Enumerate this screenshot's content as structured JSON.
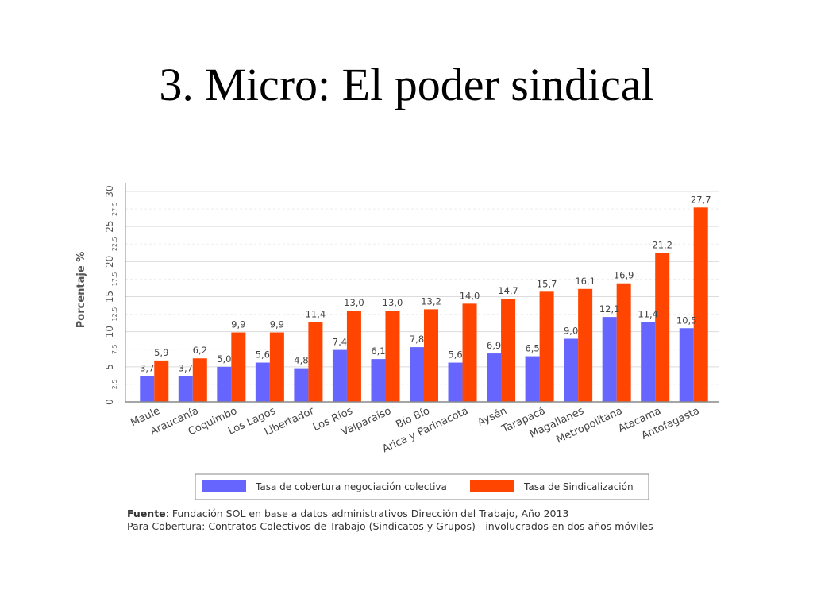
{
  "slide": {
    "title": "3. Micro: El poder sindical"
  },
  "source": {
    "label": "Fuente",
    "text": ": Fundación SOL en base a datos administrativos Dirección del Trabajo, Año 2013",
    "note": "Para Cobertura: Contratos Colectivos de Trabajo (Sindicatos y Grupos) - involucrados en dos años móviles"
  },
  "chart_data": {
    "type": "bar",
    "ylabel": "Porcentaje %",
    "ylim": [
      0,
      30
    ],
    "y_major_ticks": [
      "0",
      "5",
      "10",
      "15",
      "20",
      "25",
      "30"
    ],
    "y_minor_ticks": [
      "2.5",
      "7.5",
      "12.5",
      "17.5",
      "22.5",
      "27.5"
    ],
    "grid": true,
    "legend_position": "bottom",
    "categories": [
      "Maule",
      "Araucanía",
      "Coquimbo",
      "Los Lagos",
      "Libertador",
      "Los Ríos",
      "Valparaíso",
      "Bío Bío",
      "Arica y Parinacota",
      "Aysén",
      "Tarapacá",
      "Magallanes",
      "Metropolitana",
      "Atacama",
      "Antofagasta"
    ],
    "series": [
      {
        "name": "Tasa de cobertura negociación colectiva",
        "color": "#6666ff",
        "values": [
          3.7,
          3.7,
          5.0,
          5.6,
          4.8,
          7.4,
          6.1,
          7.8,
          5.6,
          6.9,
          6.5,
          9.0,
          12.1,
          11.4,
          10.5
        ],
        "labels": [
          "3,7",
          "3,7",
          "5,0",
          "5,6",
          "4,8",
          "7,4",
          "6,1",
          "7,8",
          "5,6",
          "6,9",
          "6,5",
          "9,0",
          "12,1",
          "11,4",
          "10,5"
        ]
      },
      {
        "name": "Tasa de Sindicalización",
        "color": "#ff4500",
        "values": [
          5.9,
          6.2,
          9.9,
          9.9,
          11.4,
          13.0,
          13.0,
          13.2,
          14.0,
          14.7,
          15.7,
          16.1,
          16.9,
          21.2,
          27.7
        ],
        "labels": [
          "5,9",
          "6,2",
          "9,9",
          "9,9",
          "11,4",
          "13,0",
          "13,0",
          "13,2",
          "14,0",
          "14,7",
          "15,7",
          "16,1",
          "16,9",
          "21,2",
          "27,7"
        ]
      }
    ]
  }
}
